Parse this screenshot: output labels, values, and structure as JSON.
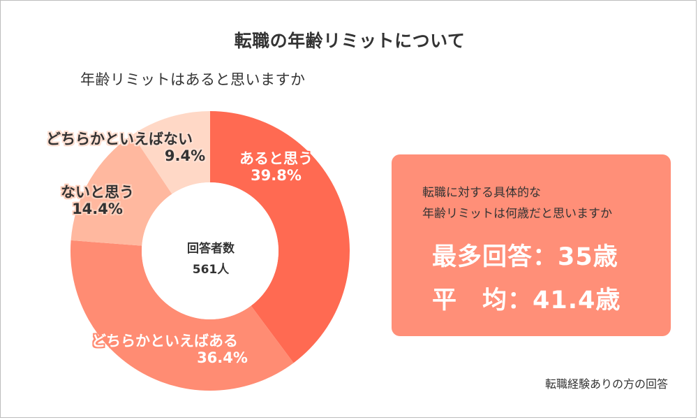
{
  "title": "転職の年齢リミットについて",
  "question": "年齢リミットはあると思いますか",
  "center": {
    "label": "回答者数",
    "value": "561人"
  },
  "chart_data": {
    "type": "pie",
    "donut": true,
    "categories": [
      "あると思う",
      "どちらかといえばある",
      "ないと思う",
      "どちらかといえばない"
    ],
    "values": [
      39.8,
      36.4,
      14.4,
      9.4
    ],
    "labels": [
      "39.8%",
      "36.4%",
      "14.4%",
      "9.4%"
    ],
    "colors": [
      "#ff6a52",
      "#ff8c73",
      "#ffb89f",
      "#ffd8c6"
    ],
    "start_angle_deg": 0,
    "direction": "clockwise"
  },
  "labels": {
    "slice0": {
      "name": "あると思う",
      "value": "39.8%"
    },
    "slice1": {
      "name": "どちらかといえばある",
      "value": "36.4%"
    },
    "slice2": {
      "name": "ないと思う",
      "value": "14.4%"
    },
    "slice3": {
      "name": "どちらかといえばない",
      "value": "9.4%"
    }
  },
  "info": {
    "question_line1": "転職に対する具体的な",
    "question_line2": "年齢リミットは何歳だと思いますか",
    "most": "最多回答：35歳",
    "average": "平　均：41.4歳",
    "background": "#ff8f78"
  },
  "footnote": "転職経験ありの方の回答"
}
